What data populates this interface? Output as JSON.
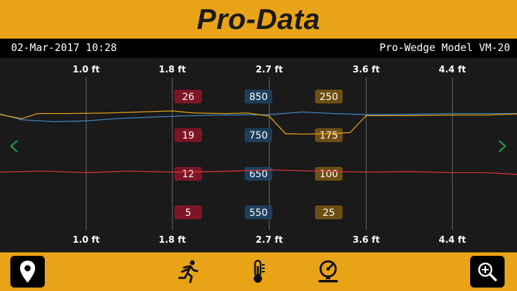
{
  "header": {
    "title": "Pro-Data"
  },
  "info": {
    "datetime": "02-Mar-2017 10:28",
    "model": "Pro-Wedge Model VM-20"
  },
  "axis": {
    "ticks": [
      "1.0 ft",
      "1.8 ft",
      "2.7 ft",
      "3.6 ft",
      "4.4 ft"
    ]
  },
  "scales": {
    "red": [
      "26",
      "19",
      "12",
      "5"
    ],
    "blue": [
      "850",
      "750",
      "650",
      "550"
    ],
    "gold": [
      "250",
      "175",
      "100",
      "25"
    ]
  },
  "colors": {
    "accent": "#e8a317",
    "red_series": "#d9333f",
    "blue_series": "#3f86c4",
    "gold_series": "#e8a317",
    "red_badge": "#7d1526",
    "blue_badge": "#1e3f5c",
    "gold_badge": "#6e4e12",
    "nav_arrow": "#1f9a4a"
  },
  "chart_data": {
    "type": "line",
    "x_unit": "ft",
    "x_ticks": [
      1.0,
      1.8,
      2.7,
      3.6,
      4.4
    ],
    "xlim": [
      0.2,
      5.0
    ],
    "grid": "vertical lines at ticks",
    "series": [
      {
        "color": "red",
        "scale_labels": [
          26,
          19,
          12,
          5
        ],
        "ylim": [
          5,
          26
        ],
        "x": [
          0.2,
          0.6,
          1.0,
          1.4,
          1.8,
          2.2,
          2.7,
          3.1,
          3.6,
          4.0,
          4.4,
          4.7,
          5.0
        ],
        "values": [
          12.3,
          12.5,
          12.2,
          12.5,
          12.3,
          12.4,
          12.7,
          12.5,
          12.3,
          12.4,
          12.2,
          12.2,
          11.9
        ]
      },
      {
        "color": "blue",
        "scale_labels": [
          850,
          750,
          650,
          550
        ],
        "ylim": [
          550,
          850
        ],
        "x": [
          0.2,
          0.4,
          0.7,
          1.0,
          1.3,
          1.8,
          2.2,
          2.7,
          3.0,
          3.3,
          3.6,
          4.0,
          4.4,
          4.7,
          5.0
        ],
        "values": [
          805,
          790,
          785,
          787,
          793,
          799,
          802,
          803,
          810,
          806,
          803,
          804,
          806,
          806,
          806
        ]
      },
      {
        "color": "gold",
        "scale_labels": [
          250,
          175,
          100,
          25
        ],
        "ylim": [
          25,
          250
        ],
        "x": [
          0.2,
          0.4,
          0.55,
          0.8,
          1.2,
          1.5,
          1.8,
          2.0,
          2.3,
          2.5,
          2.7,
          2.85,
          3.0,
          3.3,
          3.45,
          3.6,
          4.0,
          4.4,
          4.7,
          5.0
        ],
        "values": [
          215,
          207,
          217,
          217,
          218,
          220,
          222,
          218,
          217,
          218,
          212,
          178,
          177,
          178,
          180,
          213,
          213,
          214,
          214,
          216
        ]
      }
    ]
  }
}
